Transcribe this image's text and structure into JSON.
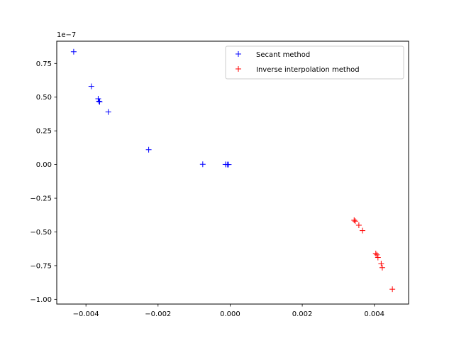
{
  "chart_data": {
    "type": "scatter",
    "title": "",
    "xlabel": "",
    "ylabel": "",
    "y_offset_label": "1e−7",
    "xlim": [
      -0.00481,
      0.00495
    ],
    "ylim": [
      -1.035,
      0.915
    ],
    "xticks": [
      {
        "value": -0.004,
        "label": "−0.004"
      },
      {
        "value": -0.002,
        "label": "−0.002"
      },
      {
        "value": 0.0,
        "label": "0.000"
      },
      {
        "value": 0.002,
        "label": "0.002"
      },
      {
        "value": 0.004,
        "label": "0.004"
      }
    ],
    "yticks": [
      {
        "value": 0.75,
        "label": "0.75"
      },
      {
        "value": 0.5,
        "label": "0.50"
      },
      {
        "value": 0.25,
        "label": "0.25"
      },
      {
        "value": 0.0,
        "label": "0.00"
      },
      {
        "value": -0.25,
        "label": "−0.25"
      },
      {
        "value": -0.5,
        "label": "−0.50"
      },
      {
        "value": -0.75,
        "label": "−0.75"
      },
      {
        "value": -1.0,
        "label": "−1.00"
      }
    ],
    "grid": false,
    "legend_position": "top-right",
    "marker": "+",
    "series": [
      {
        "name": "Secant method",
        "color": "#0000ff",
        "points": [
          [
            -0.00434,
            0.837
          ],
          [
            -0.00385,
            0.58
          ],
          [
            -0.00366,
            0.488
          ],
          [
            -0.00364,
            0.47
          ],
          [
            -0.00362,
            0.465
          ],
          [
            -0.00338,
            0.39
          ],
          [
            -0.00226,
            0.11
          ],
          [
            -0.00076,
            0.002
          ],
          [
            -0.00013,
            0.001
          ],
          [
            -8e-05,
            0.0
          ],
          [
            -4e-05,
            0.0
          ]
        ]
      },
      {
        "name": "Inverse interpolation method",
        "color": "#ff0000",
        "points": [
          [
            0.00344,
            -0.413
          ],
          [
            0.00347,
            -0.42
          ],
          [
            0.00357,
            -0.45
          ],
          [
            0.00367,
            -0.49
          ],
          [
            0.00404,
            -0.66
          ],
          [
            0.00407,
            -0.67
          ],
          [
            0.0041,
            -0.69
          ],
          [
            0.00419,
            -0.735
          ],
          [
            0.00422,
            -0.765
          ],
          [
            0.0045,
            -0.925
          ]
        ]
      }
    ]
  }
}
